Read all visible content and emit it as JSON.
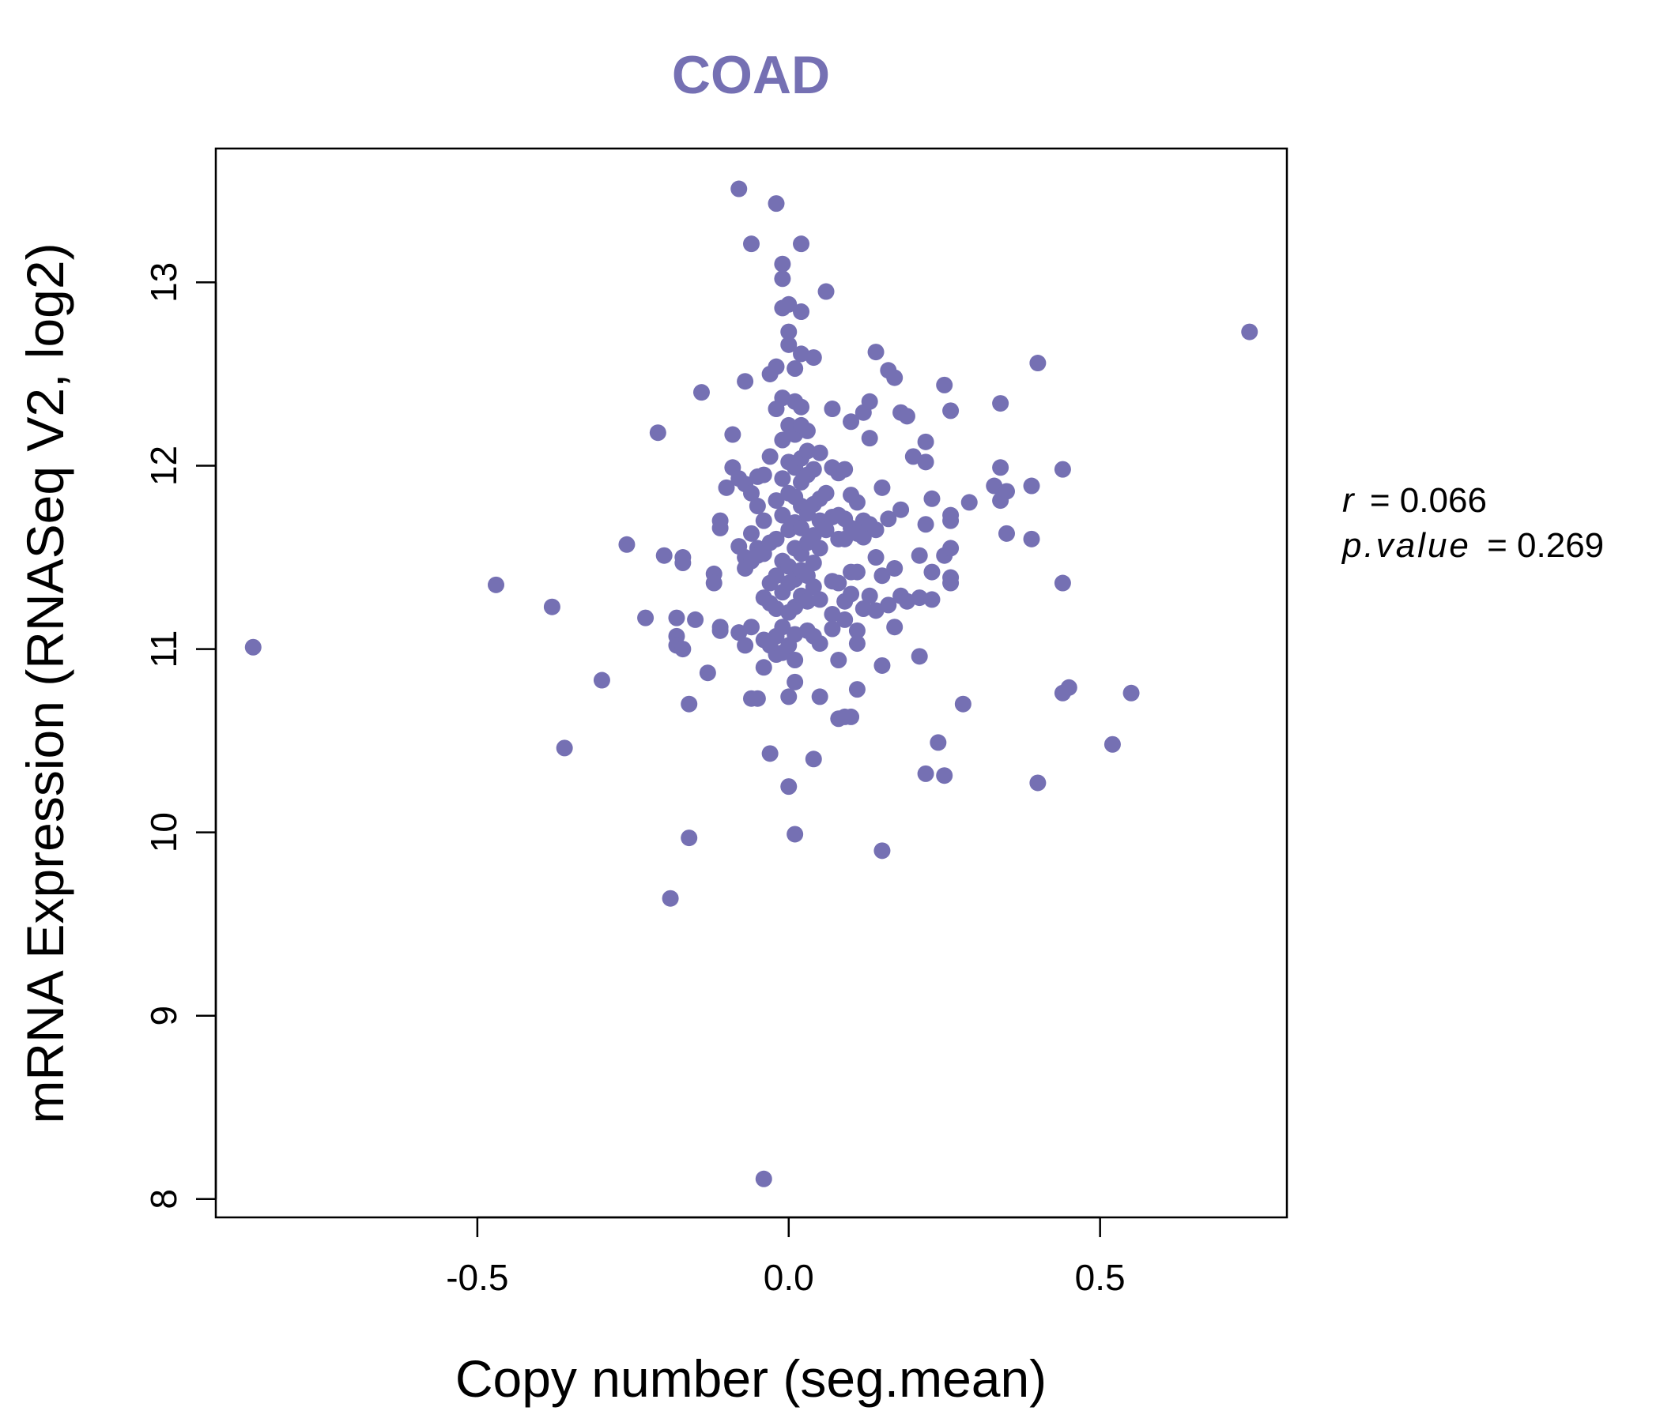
{
  "chart_data": {
    "type": "scatter",
    "title": "COAD",
    "xlabel": "Copy number (seg.mean)",
    "ylabel": "mRNA Expression (RNASeq V2, log2)",
    "xlim": [
      -0.92,
      0.8
    ],
    "ylim": [
      7.9,
      13.73
    ],
    "xticks": [
      -0.5,
      0.0,
      0.5
    ],
    "xtick_labels": [
      "-0.5",
      "0.0",
      "0.5"
    ],
    "yticks": [
      8,
      9,
      10,
      11,
      12,
      13
    ],
    "ytick_labels": [
      "8",
      "9",
      "10",
      "11",
      "12",
      "13"
    ],
    "grid": false,
    "point_color": "#7570b3",
    "stats": {
      "r_label": "r",
      "r_eq": "= 0.066",
      "p_label": "p.value",
      "p_eq": "= 0.269"
    },
    "series": [
      {
        "points": [
          [
            -0.86,
            11.01
          ],
          [
            0.74,
            12.73
          ],
          [
            -0.47,
            11.35
          ],
          [
            -0.38,
            11.23
          ],
          [
            -0.36,
            10.46
          ],
          [
            -0.3,
            10.83
          ],
          [
            -0.26,
            11.57
          ],
          [
            -0.23,
            11.17
          ],
          [
            -0.21,
            12.18
          ],
          [
            -0.2,
            11.51
          ],
          [
            -0.19,
            9.64
          ],
          [
            -0.18,
            11.17
          ],
          [
            -0.18,
            11.07
          ],
          [
            -0.18,
            11.02
          ],
          [
            -0.17,
            11.5
          ],
          [
            -0.17,
            11.47
          ],
          [
            -0.17,
            11.0
          ],
          [
            -0.16,
            10.7
          ],
          [
            -0.16,
            9.97
          ],
          [
            -0.15,
            11.16
          ],
          [
            -0.14,
            12.4
          ],
          [
            -0.13,
            10.87
          ],
          [
            -0.12,
            11.41
          ],
          [
            -0.12,
            11.36
          ],
          [
            -0.11,
            11.7
          ],
          [
            -0.11,
            11.66
          ],
          [
            -0.11,
            11.12
          ],
          [
            -0.11,
            11.1
          ],
          [
            -0.1,
            11.88
          ],
          [
            -0.09,
            11.99
          ],
          [
            -0.09,
            12.17
          ],
          [
            -0.08,
            13.51
          ],
          [
            -0.08,
            11.93
          ],
          [
            -0.08,
            11.56
          ],
          [
            -0.08,
            11.09
          ],
          [
            -0.07,
            11.9
          ],
          [
            -0.07,
            11.5
          ],
          [
            -0.07,
            11.44
          ],
          [
            -0.07,
            11.02
          ],
          [
            -0.07,
            12.46
          ],
          [
            -0.06,
            13.21
          ],
          [
            -0.06,
            11.85
          ],
          [
            -0.06,
            11.63
          ],
          [
            -0.06,
            11.48
          ],
          [
            -0.06,
            11.12
          ],
          [
            -0.06,
            10.73
          ],
          [
            -0.05,
            11.55
          ],
          [
            -0.05,
            11.78
          ],
          [
            -0.05,
            11.94
          ],
          [
            -0.05,
            11.51
          ],
          [
            -0.05,
            10.73
          ],
          [
            -0.04,
            11.95
          ],
          [
            -0.04,
            11.7
          ],
          [
            -0.04,
            11.52
          ],
          [
            -0.04,
            11.28
          ],
          [
            -0.04,
            11.05
          ],
          [
            -0.04,
            10.9
          ],
          [
            -0.04,
            8.11
          ],
          [
            -0.03,
            12.05
          ],
          [
            -0.03,
            11.58
          ],
          [
            -0.03,
            11.36
          ],
          [
            -0.03,
            11.25
          ],
          [
            -0.03,
            11.02
          ],
          [
            -0.03,
            10.43
          ],
          [
            -0.03,
            12.5
          ],
          [
            -0.02,
            13.43
          ],
          [
            -0.02,
            12.31
          ],
          [
            -0.02,
            12.54
          ],
          [
            -0.02,
            11.81
          ],
          [
            -0.02,
            11.6
          ],
          [
            -0.02,
            11.4
          ],
          [
            -0.02,
            11.22
          ],
          [
            -0.02,
            11.07
          ],
          [
            -0.02,
            10.97
          ],
          [
            -0.01,
            13.02
          ],
          [
            -0.01,
            12.86
          ],
          [
            -0.01,
            12.37
          ],
          [
            -0.01,
            12.14
          ],
          [
            -0.01,
            11.93
          ],
          [
            -0.01,
            11.73
          ],
          [
            -0.01,
            11.48
          ],
          [
            -0.01,
            11.31
          ],
          [
            -0.01,
            11.12
          ],
          [
            -0.01,
            10.98
          ],
          [
            -0.01,
            13.1
          ],
          [
            0.0,
            12.88
          ],
          [
            0.0,
            12.66
          ],
          [
            0.0,
            12.22
          ],
          [
            0.0,
            12.02
          ],
          [
            0.0,
            11.85
          ],
          [
            0.0,
            11.65
          ],
          [
            0.0,
            11.45
          ],
          [
            0.0,
            11.36
          ],
          [
            0.0,
            11.2
          ],
          [
            0.0,
            11.02
          ],
          [
            0.0,
            10.74
          ],
          [
            0.0,
            10.25
          ],
          [
            0.0,
            12.73
          ],
          [
            0.01,
            12.53
          ],
          [
            0.01,
            12.35
          ],
          [
            0.01,
            12.17
          ],
          [
            0.01,
            11.99
          ],
          [
            0.01,
            11.83
          ],
          [
            0.01,
            11.69
          ],
          [
            0.01,
            11.55
          ],
          [
            0.01,
            11.38
          ],
          [
            0.01,
            11.23
          ],
          [
            0.01,
            11.08
          ],
          [
            0.01,
            10.94
          ],
          [
            0.01,
            10.82
          ],
          [
            0.01,
            9.99
          ],
          [
            0.02,
            12.61
          ],
          [
            0.02,
            12.32
          ],
          [
            0.02,
            12.22
          ],
          [
            0.02,
            12.04
          ],
          [
            0.02,
            11.91
          ],
          [
            0.02,
            11.78
          ],
          [
            0.02,
            11.66
          ],
          [
            0.02,
            11.52
          ],
          [
            0.02,
            11.43
          ],
          [
            0.02,
            11.29
          ],
          [
            0.02,
            13.21
          ],
          [
            0.02,
            12.84
          ],
          [
            0.03,
            12.19
          ],
          [
            0.03,
            11.95
          ],
          [
            0.03,
            11.74
          ],
          [
            0.03,
            11.58
          ],
          [
            0.03,
            11.4
          ],
          [
            0.03,
            11.26
          ],
          [
            0.03,
            11.1
          ],
          [
            0.03,
            12.08
          ],
          [
            0.04,
            12.59
          ],
          [
            0.04,
            11.98
          ],
          [
            0.04,
            11.79
          ],
          [
            0.04,
            11.62
          ],
          [
            0.04,
            11.47
          ],
          [
            0.04,
            11.34
          ],
          [
            0.04,
            11.07
          ],
          [
            0.04,
            10.4
          ],
          [
            0.05,
            12.07
          ],
          [
            0.05,
            11.82
          ],
          [
            0.05,
            11.7
          ],
          [
            0.05,
            11.55
          ],
          [
            0.05,
            11.27
          ],
          [
            0.05,
            11.03
          ],
          [
            0.05,
            10.74
          ],
          [
            0.06,
            12.95
          ],
          [
            0.06,
            11.85
          ],
          [
            0.06,
            11.65
          ],
          [
            0.07,
            12.31
          ],
          [
            0.07,
            11.99
          ],
          [
            0.07,
            11.72
          ],
          [
            0.07,
            11.37
          ],
          [
            0.07,
            11.19
          ],
          [
            0.07,
            11.11
          ],
          [
            0.08,
            11.96
          ],
          [
            0.08,
            11.73
          ],
          [
            0.08,
            11.6
          ],
          [
            0.08,
            11.36
          ],
          [
            0.08,
            10.94
          ],
          [
            0.08,
            10.62
          ],
          [
            0.09,
            11.98
          ],
          [
            0.09,
            11.71
          ],
          [
            0.09,
            11.6
          ],
          [
            0.09,
            11.16
          ],
          [
            0.09,
            11.26
          ],
          [
            0.09,
            10.63
          ],
          [
            0.1,
            12.24
          ],
          [
            0.1,
            11.84
          ],
          [
            0.1,
            11.66
          ],
          [
            0.1,
            11.42
          ],
          [
            0.1,
            11.3
          ],
          [
            0.1,
            10.63
          ],
          [
            0.11,
            11.8
          ],
          [
            0.11,
            11.63
          ],
          [
            0.11,
            11.42
          ],
          [
            0.11,
            11.1
          ],
          [
            0.11,
            11.03
          ],
          [
            0.11,
            10.78
          ],
          [
            0.12,
            12.29
          ],
          [
            0.12,
            11.7
          ],
          [
            0.12,
            11.61
          ],
          [
            0.12,
            11.22
          ],
          [
            0.13,
            12.15
          ],
          [
            0.13,
            12.35
          ],
          [
            0.13,
            11.68
          ],
          [
            0.13,
            11.29
          ],
          [
            0.14,
            12.62
          ],
          [
            0.14,
            11.5
          ],
          [
            0.14,
            11.21
          ],
          [
            0.14,
            11.65
          ],
          [
            0.15,
            11.88
          ],
          [
            0.15,
            11.4
          ],
          [
            0.15,
            10.91
          ],
          [
            0.15,
            9.9
          ],
          [
            0.16,
            11.71
          ],
          [
            0.16,
            11.24
          ],
          [
            0.16,
            12.52
          ],
          [
            0.17,
            11.44
          ],
          [
            0.17,
            11.12
          ],
          [
            0.17,
            12.48
          ],
          [
            0.18,
            11.76
          ],
          [
            0.18,
            11.29
          ],
          [
            0.18,
            12.29
          ],
          [
            0.19,
            12.27
          ],
          [
            0.19,
            11.26
          ],
          [
            0.2,
            12.05
          ],
          [
            0.21,
            11.51
          ],
          [
            0.21,
            10.96
          ],
          [
            0.21,
            11.28
          ],
          [
            0.22,
            12.13
          ],
          [
            0.22,
            12.02
          ],
          [
            0.22,
            11.68
          ],
          [
            0.22,
            10.32
          ],
          [
            0.23,
            11.82
          ],
          [
            0.23,
            11.27
          ],
          [
            0.23,
            11.42
          ],
          [
            0.24,
            10.49
          ],
          [
            0.25,
            12.44
          ],
          [
            0.25,
            10.31
          ],
          [
            0.25,
            11.51
          ],
          [
            0.26,
            11.73
          ],
          [
            0.26,
            11.7
          ],
          [
            0.26,
            12.3
          ],
          [
            0.26,
            11.55
          ],
          [
            0.26,
            11.39
          ],
          [
            0.26,
            11.36
          ],
          [
            0.28,
            10.7
          ],
          [
            0.29,
            11.8
          ],
          [
            0.33,
            11.89
          ],
          [
            0.34,
            12.34
          ],
          [
            0.34,
            11.99
          ],
          [
            0.34,
            11.81
          ],
          [
            0.35,
            11.63
          ],
          [
            0.35,
            11.86
          ],
          [
            0.39,
            11.89
          ],
          [
            0.39,
            11.6
          ],
          [
            0.4,
            12.56
          ],
          [
            0.4,
            10.27
          ],
          [
            0.44,
            10.76
          ],
          [
            0.44,
            11.98
          ],
          [
            0.44,
            11.36
          ],
          [
            0.45,
            10.79
          ],
          [
            0.52,
            10.48
          ],
          [
            0.55,
            10.76
          ]
        ]
      }
    ]
  }
}
